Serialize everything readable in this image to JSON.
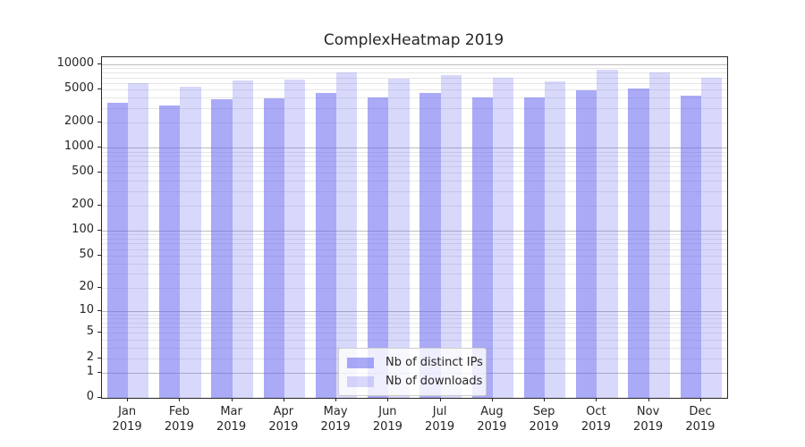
{
  "title": "ComplexHeatmap 2019",
  "chart_data": {
    "type": "bar",
    "categories": [
      "Jan",
      "Feb",
      "Mar",
      "Apr",
      "May",
      "Jun",
      "Jul",
      "Aug",
      "Sep",
      "Oct",
      "Nov",
      "Dec"
    ],
    "category_year": "2019",
    "series": [
      {
        "name": "Nb of distinct IPs",
        "color": "#6464f0",
        "fill_alpha": 0.55,
        "rendered_hex": "#aaaaf8",
        "values": [
          3500,
          3200,
          3800,
          3900,
          4500,
          4000,
          4500,
          4000,
          4000,
          4900,
          5100,
          4200
        ]
      },
      {
        "name": "Nb of downloads",
        "color": "#6464f0",
        "fill_alpha": 0.25,
        "rendered_hex": "#d8d8fb",
        "values": [
          5900,
          5400,
          6500,
          6600,
          8000,
          6700,
          7400,
          6900,
          6300,
          8600,
          8100,
          6900
        ]
      }
    ],
    "yscale": "symlog",
    "ylim": [
      0,
      12200
    ],
    "yticks": [
      0,
      1,
      2,
      5,
      10,
      20,
      50,
      100,
      200,
      500,
      1000,
      2000,
      5000,
      10000
    ],
    "grid": {
      "on": true,
      "major_color": "#bdbdbd",
      "minor_color": "#e7e7e7"
    },
    "legend_position": "lower center",
    "bar_group_width_fraction": 0.8
  }
}
